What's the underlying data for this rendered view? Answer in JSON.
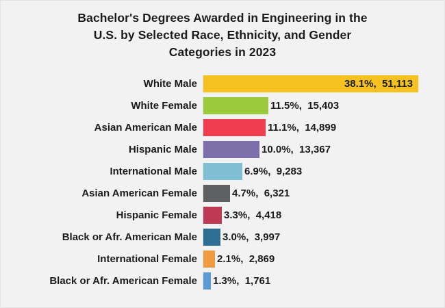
{
  "colors": {
    "background": "#f2f2f2",
    "text": "#1b1b1b",
    "axis_line": "#ddddda"
  },
  "chart_data": {
    "type": "bar",
    "orientation": "horizontal",
    "title": "Bachelor's Degrees Awarded in Engineering in the U.S. by Selected Race, Ethnicity, and Gender Categories in 2023",
    "title_lines": [
      "Bachelor's Degrees Awarded in Engineering in the",
      "U.S. by Selected Race, Ethnicity, and Gender",
      "Categories in 2023"
    ],
    "categories": [
      "White Male",
      "White Female",
      "Asian American Male",
      "Hispanic Male",
      "International Male",
      "Asian American Female",
      "Hispanic Female",
      "Black or Afr. American Male",
      "International Female",
      "Black or Afr. American Female"
    ],
    "series": [
      {
        "name": "percent",
        "values": [
          38.1,
          11.5,
          11.1,
          10.0,
          6.9,
          4.7,
          3.3,
          3.0,
          2.1,
          1.3
        ]
      },
      {
        "name": "count",
        "values": [
          51113,
          15403,
          14899,
          13367,
          9283,
          6321,
          4418,
          3997,
          2869,
          1761
        ]
      }
    ],
    "value_labels": [
      "38.1%,  51,113",
      "11.5%,  15,403",
      "11.1%,  14,899",
      "10.0%,  13,367",
      "6.9%,  9,283",
      "4.7%,  6,321",
      "3.3%,  4,418",
      "3.0%,  3,997",
      "2.1%,  2,869",
      "1.3%,  1,761"
    ],
    "value_label_inside": [
      true,
      false,
      false,
      false,
      false,
      false,
      false,
      false,
      false,
      false
    ],
    "bar_colors": [
      "#f5c222",
      "#9bcb3c",
      "#ee3e50",
      "#7d6fa9",
      "#7fbfd4",
      "#5f6062",
      "#be3a54",
      "#2e6d94",
      "#ee9b42",
      "#5b9bd5"
    ],
    "xlim": [
      0,
      40
    ],
    "grid": false,
    "legend": false
  }
}
